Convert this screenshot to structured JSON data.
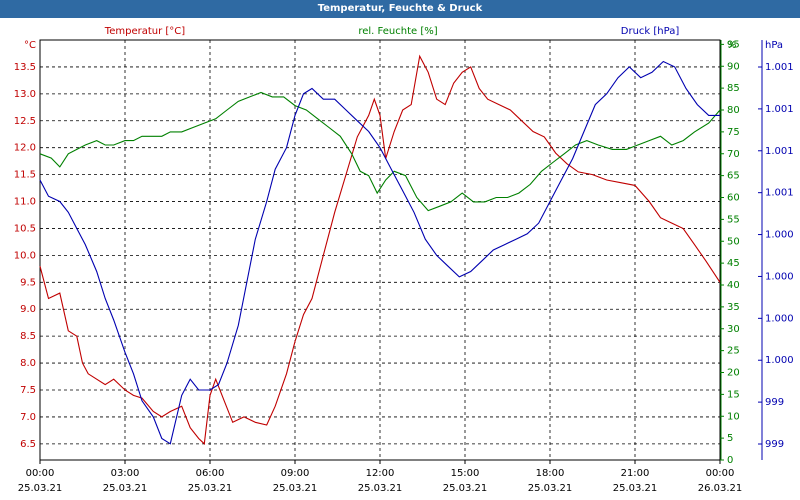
{
  "chart_data": {
    "type": "line",
    "title": "Temperatur, Feuchte & Druck",
    "legend": [
      "Temperatur [°C]",
      "rel. Feuchte [%]",
      "Druck [hPa]"
    ],
    "colors": {
      "temperature": "#c00000",
      "humidity": "#008000",
      "pressure": "#0000b0",
      "title_bg": "#2f6aa3"
    },
    "axes": {
      "left": {
        "unit": "°C",
        "color": "#c00000",
        "range": [
          6.2,
          14.0
        ],
        "ticks": [
          "6.5",
          "7.0",
          "7.5",
          "8.0",
          "8.5",
          "9.0",
          "9.5",
          "10.0",
          "10.5",
          "11.0",
          "11.5",
          "12.0",
          "12.5",
          "13.0",
          "13.5"
        ]
      },
      "right1": {
        "unit": "%",
        "color": "#008000",
        "range": [
          0,
          96
        ],
        "ticks": [
          "0",
          "5",
          "10",
          "15",
          "20",
          "25",
          "30",
          "35",
          "40",
          "45",
          "50",
          "55",
          "60",
          "65",
          "70",
          "75",
          "80",
          "85",
          "90",
          "95"
        ]
      },
      "right2": {
        "unit": "hPa",
        "color": "#0000b0",
        "ticks": [
          "999",
          "999",
          "1.000",
          "1.000",
          "1.000",
          "1.000",
          "1.001",
          "1.001",
          "1.001",
          "1.001"
        ]
      },
      "x": {
        "range_hours": [
          0,
          24
        ],
        "ticks": [
          {
            "time": "00:00",
            "date": "25.03.21"
          },
          {
            "time": "03:00",
            "date": "25.03.21"
          },
          {
            "time": "06:00",
            "date": "25.03.21"
          },
          {
            "time": "09:00",
            "date": "25.03.21"
          },
          {
            "time": "12:00",
            "date": "25.03.21"
          },
          {
            "time": "15:00",
            "date": "25.03.21"
          },
          {
            "time": "18:00",
            "date": "25.03.21"
          },
          {
            "time": "21:00",
            "date": "25.03.21"
          },
          {
            "time": "00:00",
            "date": "26.03.21"
          }
        ]
      }
    },
    "grid": true,
    "series": [
      {
        "name": "Temperatur [°C]",
        "key": "temperature",
        "axis": "left",
        "points": [
          [
            0,
            9.8
          ],
          [
            0.3,
            9.2
          ],
          [
            0.7,
            9.3
          ],
          [
            1,
            8.6
          ],
          [
            1.3,
            8.5
          ],
          [
            1.5,
            8.0
          ],
          [
            1.7,
            7.8
          ],
          [
            2,
            7.7
          ],
          [
            2.3,
            7.6
          ],
          [
            2.6,
            7.7
          ],
          [
            3,
            7.5
          ],
          [
            3.3,
            7.4
          ],
          [
            3.6,
            7.35
          ],
          [
            4,
            7.1
          ],
          [
            4.3,
            7.0
          ],
          [
            4.6,
            7.1
          ],
          [
            5,
            7.2
          ],
          [
            5.3,
            6.8
          ],
          [
            5.6,
            6.6
          ],
          [
            5.8,
            6.5
          ],
          [
            6,
            7.4
          ],
          [
            6.2,
            7.7
          ],
          [
            6.5,
            7.3
          ],
          [
            6.8,
            6.9
          ],
          [
            7.2,
            7.0
          ],
          [
            7.6,
            6.9
          ],
          [
            8,
            6.85
          ],
          [
            8.3,
            7.2
          ],
          [
            8.7,
            7.8
          ],
          [
            9,
            8.4
          ],
          [
            9.3,
            8.9
          ],
          [
            9.6,
            9.2
          ],
          [
            10,
            10.0
          ],
          [
            10.4,
            10.8
          ],
          [
            10.8,
            11.5
          ],
          [
            11.2,
            12.2
          ],
          [
            11.6,
            12.6
          ],
          [
            11.8,
            12.9
          ],
          [
            12,
            12.6
          ],
          [
            12.2,
            11.8
          ],
          [
            12.5,
            12.3
          ],
          [
            12.8,
            12.7
          ],
          [
            13.1,
            12.8
          ],
          [
            13.4,
            13.7
          ],
          [
            13.7,
            13.4
          ],
          [
            14,
            12.9
          ],
          [
            14.3,
            12.8
          ],
          [
            14.6,
            13.2
          ],
          [
            14.9,
            13.4
          ],
          [
            15.2,
            13.5
          ],
          [
            15.5,
            13.1
          ],
          [
            15.8,
            12.9
          ],
          [
            16.2,
            12.8
          ],
          [
            16.6,
            12.7
          ],
          [
            17,
            12.5
          ],
          [
            17.4,
            12.3
          ],
          [
            17.8,
            12.2
          ],
          [
            18.2,
            11.9
          ],
          [
            18.6,
            11.7
          ],
          [
            19,
            11.55
          ],
          [
            19.5,
            11.5
          ],
          [
            20,
            11.4
          ],
          [
            20.5,
            11.35
          ],
          [
            21,
            11.3
          ],
          [
            21.5,
            11.0
          ],
          [
            21.9,
            10.7
          ],
          [
            22.3,
            10.6
          ],
          [
            22.7,
            10.5
          ],
          [
            23.1,
            10.2
          ],
          [
            23.5,
            9.9
          ],
          [
            24,
            9.5
          ]
        ]
      },
      {
        "name": "rel. Feuchte [%]",
        "key": "humidity",
        "axis": "right1",
        "points": [
          [
            0,
            70
          ],
          [
            0.4,
            69
          ],
          [
            0.7,
            67
          ],
          [
            1,
            70
          ],
          [
            1.3,
            71
          ],
          [
            1.6,
            72
          ],
          [
            2,
            73
          ],
          [
            2.3,
            72
          ],
          [
            2.6,
            72
          ],
          [
            3,
            73
          ],
          [
            3.3,
            73
          ],
          [
            3.6,
            74
          ],
          [
            4,
            74
          ],
          [
            4.3,
            74
          ],
          [
            4.6,
            75
          ],
          [
            5,
            75
          ],
          [
            5.4,
            76
          ],
          [
            5.8,
            77
          ],
          [
            6.2,
            78
          ],
          [
            6.6,
            80
          ],
          [
            7,
            82
          ],
          [
            7.4,
            83
          ],
          [
            7.8,
            84
          ],
          [
            8.2,
            83
          ],
          [
            8.6,
            83
          ],
          [
            9,
            81
          ],
          [
            9.4,
            80
          ],
          [
            9.8,
            78
          ],
          [
            10.2,
            76
          ],
          [
            10.6,
            74
          ],
          [
            11,
            70
          ],
          [
            11.3,
            66
          ],
          [
            11.6,
            65
          ],
          [
            11.9,
            61
          ],
          [
            12.2,
            64
          ],
          [
            12.5,
            66
          ],
          [
            12.9,
            65
          ],
          [
            13.3,
            60
          ],
          [
            13.7,
            57
          ],
          [
            14.1,
            58
          ],
          [
            14.5,
            59
          ],
          [
            14.9,
            61
          ],
          [
            15.3,
            59
          ],
          [
            15.7,
            59
          ],
          [
            16.1,
            60
          ],
          [
            16.5,
            60
          ],
          [
            16.9,
            61
          ],
          [
            17.3,
            63
          ],
          [
            17.7,
            66
          ],
          [
            18.1,
            68
          ],
          [
            18.5,
            70
          ],
          [
            18.9,
            72
          ],
          [
            19.3,
            73
          ],
          [
            19.7,
            72
          ],
          [
            20.2,
            71
          ],
          [
            20.7,
            71
          ],
          [
            21.1,
            72
          ],
          [
            21.5,
            73
          ],
          [
            21.9,
            74
          ],
          [
            22.3,
            72
          ],
          [
            22.7,
            73
          ],
          [
            23.1,
            75
          ],
          [
            23.6,
            77
          ],
          [
            24,
            80
          ]
        ]
      },
      {
        "name": "Druck [hPa]",
        "key": "pressure",
        "axis": "left",
        "points": [
          [
            0,
            11.4
          ],
          [
            0.3,
            11.1
          ],
          [
            0.7,
            11.0
          ],
          [
            1,
            10.8
          ],
          [
            1.3,
            10.5
          ],
          [
            1.6,
            10.2
          ],
          [
            2,
            9.7
          ],
          [
            2.3,
            9.2
          ],
          [
            2.6,
            8.8
          ],
          [
            3,
            8.2
          ],
          [
            3.3,
            7.8
          ],
          [
            3.6,
            7.3
          ],
          [
            4,
            7.0
          ],
          [
            4.3,
            6.6
          ],
          [
            4.6,
            6.5
          ],
          [
            5,
            7.4
          ],
          [
            5.3,
            7.7
          ],
          [
            5.6,
            7.5
          ],
          [
            6,
            7.5
          ],
          [
            6.3,
            7.6
          ],
          [
            6.6,
            8.0
          ],
          [
            7,
            8.7
          ],
          [
            7.3,
            9.5
          ],
          [
            7.6,
            10.3
          ],
          [
            8,
            11.0
          ],
          [
            8.3,
            11.6
          ],
          [
            8.7,
            12.0
          ],
          [
            9,
            12.6
          ],
          [
            9.3,
            13.0
          ],
          [
            9.6,
            13.1
          ],
          [
            10,
            12.9
          ],
          [
            10.4,
            12.9
          ],
          [
            10.8,
            12.7
          ],
          [
            11.2,
            12.5
          ],
          [
            11.6,
            12.3
          ],
          [
            12,
            12.0
          ],
          [
            12.4,
            11.6
          ],
          [
            12.8,
            11.2
          ],
          [
            13.2,
            10.8
          ],
          [
            13.6,
            10.3
          ],
          [
            14,
            10.0
          ],
          [
            14.4,
            9.8
          ],
          [
            14.8,
            9.6
          ],
          [
            15.2,
            9.7
          ],
          [
            15.6,
            9.9
          ],
          [
            16,
            10.1
          ],
          [
            16.4,
            10.2
          ],
          [
            16.8,
            10.3
          ],
          [
            17.2,
            10.4
          ],
          [
            17.6,
            10.6
          ],
          [
            18,
            11.0
          ],
          [
            18.4,
            11.4
          ],
          [
            18.8,
            11.8
          ],
          [
            19.2,
            12.3
          ],
          [
            19.6,
            12.8
          ],
          [
            20,
            13.0
          ],
          [
            20.4,
            13.3
          ],
          [
            20.8,
            13.5
          ],
          [
            21.2,
            13.3
          ],
          [
            21.6,
            13.4
          ],
          [
            22,
            13.6
          ],
          [
            22.4,
            13.5
          ],
          [
            22.8,
            13.1
          ],
          [
            23.2,
            12.8
          ],
          [
            23.6,
            12.6
          ],
          [
            24,
            12.6
          ]
        ]
      }
    ]
  }
}
